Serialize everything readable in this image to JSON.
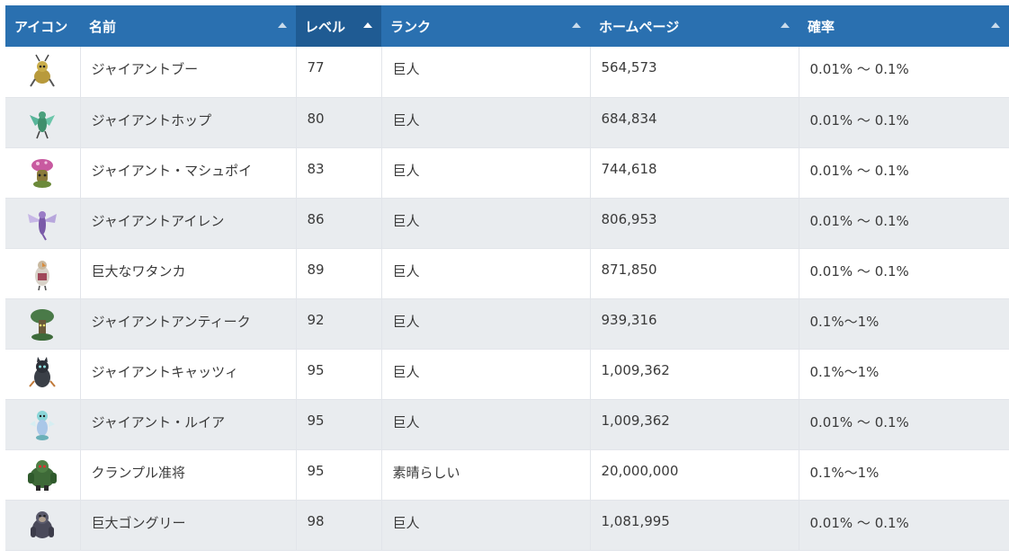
{
  "table": {
    "headers": {
      "icon": "アイコン",
      "name": "名前",
      "level": "レベル",
      "rank": "ランク",
      "homepage": "ホームページ",
      "probability": "確率"
    },
    "sorted_column": "level",
    "rows": [
      {
        "icon": "ant-bug-monster-icon",
        "name": "ジャイアントブー",
        "level": "77",
        "rank": "巨人",
        "homepage": "564,573",
        "probability": "0.01% ～ 0.1%"
      },
      {
        "icon": "winged-insect-monster-icon",
        "name": "ジャイアントホップ",
        "level": "80",
        "rank": "巨人",
        "homepage": "684,834",
        "probability": "0.01% ～ 0.1%"
      },
      {
        "icon": "mushroom-monster-icon",
        "name": "ジャイアント・マシュポイ",
        "level": "83",
        "rank": "巨人",
        "homepage": "744,618",
        "probability": "0.01% ～ 0.1%"
      },
      {
        "icon": "dragonfly-monster-icon",
        "name": "ジャイアントアイレン",
        "level": "86",
        "rank": "巨人",
        "homepage": "806,953",
        "probability": "0.01% ～ 0.1%"
      },
      {
        "icon": "hawk-monster-icon",
        "name": "巨大なワタンカ",
        "level": "89",
        "rank": "巨人",
        "homepage": "871,850",
        "probability": "0.01% ～ 0.1%"
      },
      {
        "icon": "tree-monster-icon",
        "name": "ジャイアントアンティーク",
        "level": "92",
        "rank": "巨人",
        "homepage": "939,316",
        "probability": "0.1%～1%"
      },
      {
        "icon": "cat-monster-icon",
        "name": "ジャイアントキャッツィ",
        "level": "95",
        "rank": "巨人",
        "homepage": "1,009,362",
        "probability": "0.1%～1%"
      },
      {
        "icon": "fairy-monster-icon",
        "name": "ジャイアント・ルイア",
        "level": "95",
        "rank": "巨人",
        "homepage": "1,009,362",
        "probability": "0.01% ～ 0.1%"
      },
      {
        "icon": "ogre-monster-icon",
        "name": "クランプル准将",
        "level": "95",
        "rank": "素晴らしい",
        "homepage": "20,000,000",
        "probability": "0.1%～1%"
      },
      {
        "icon": "gorilla-monster-icon",
        "name": "巨大ゴングリー",
        "level": "98",
        "rank": "巨人",
        "homepage": "1,081,995",
        "probability": "0.01% ～ 0.1%"
      }
    ]
  }
}
